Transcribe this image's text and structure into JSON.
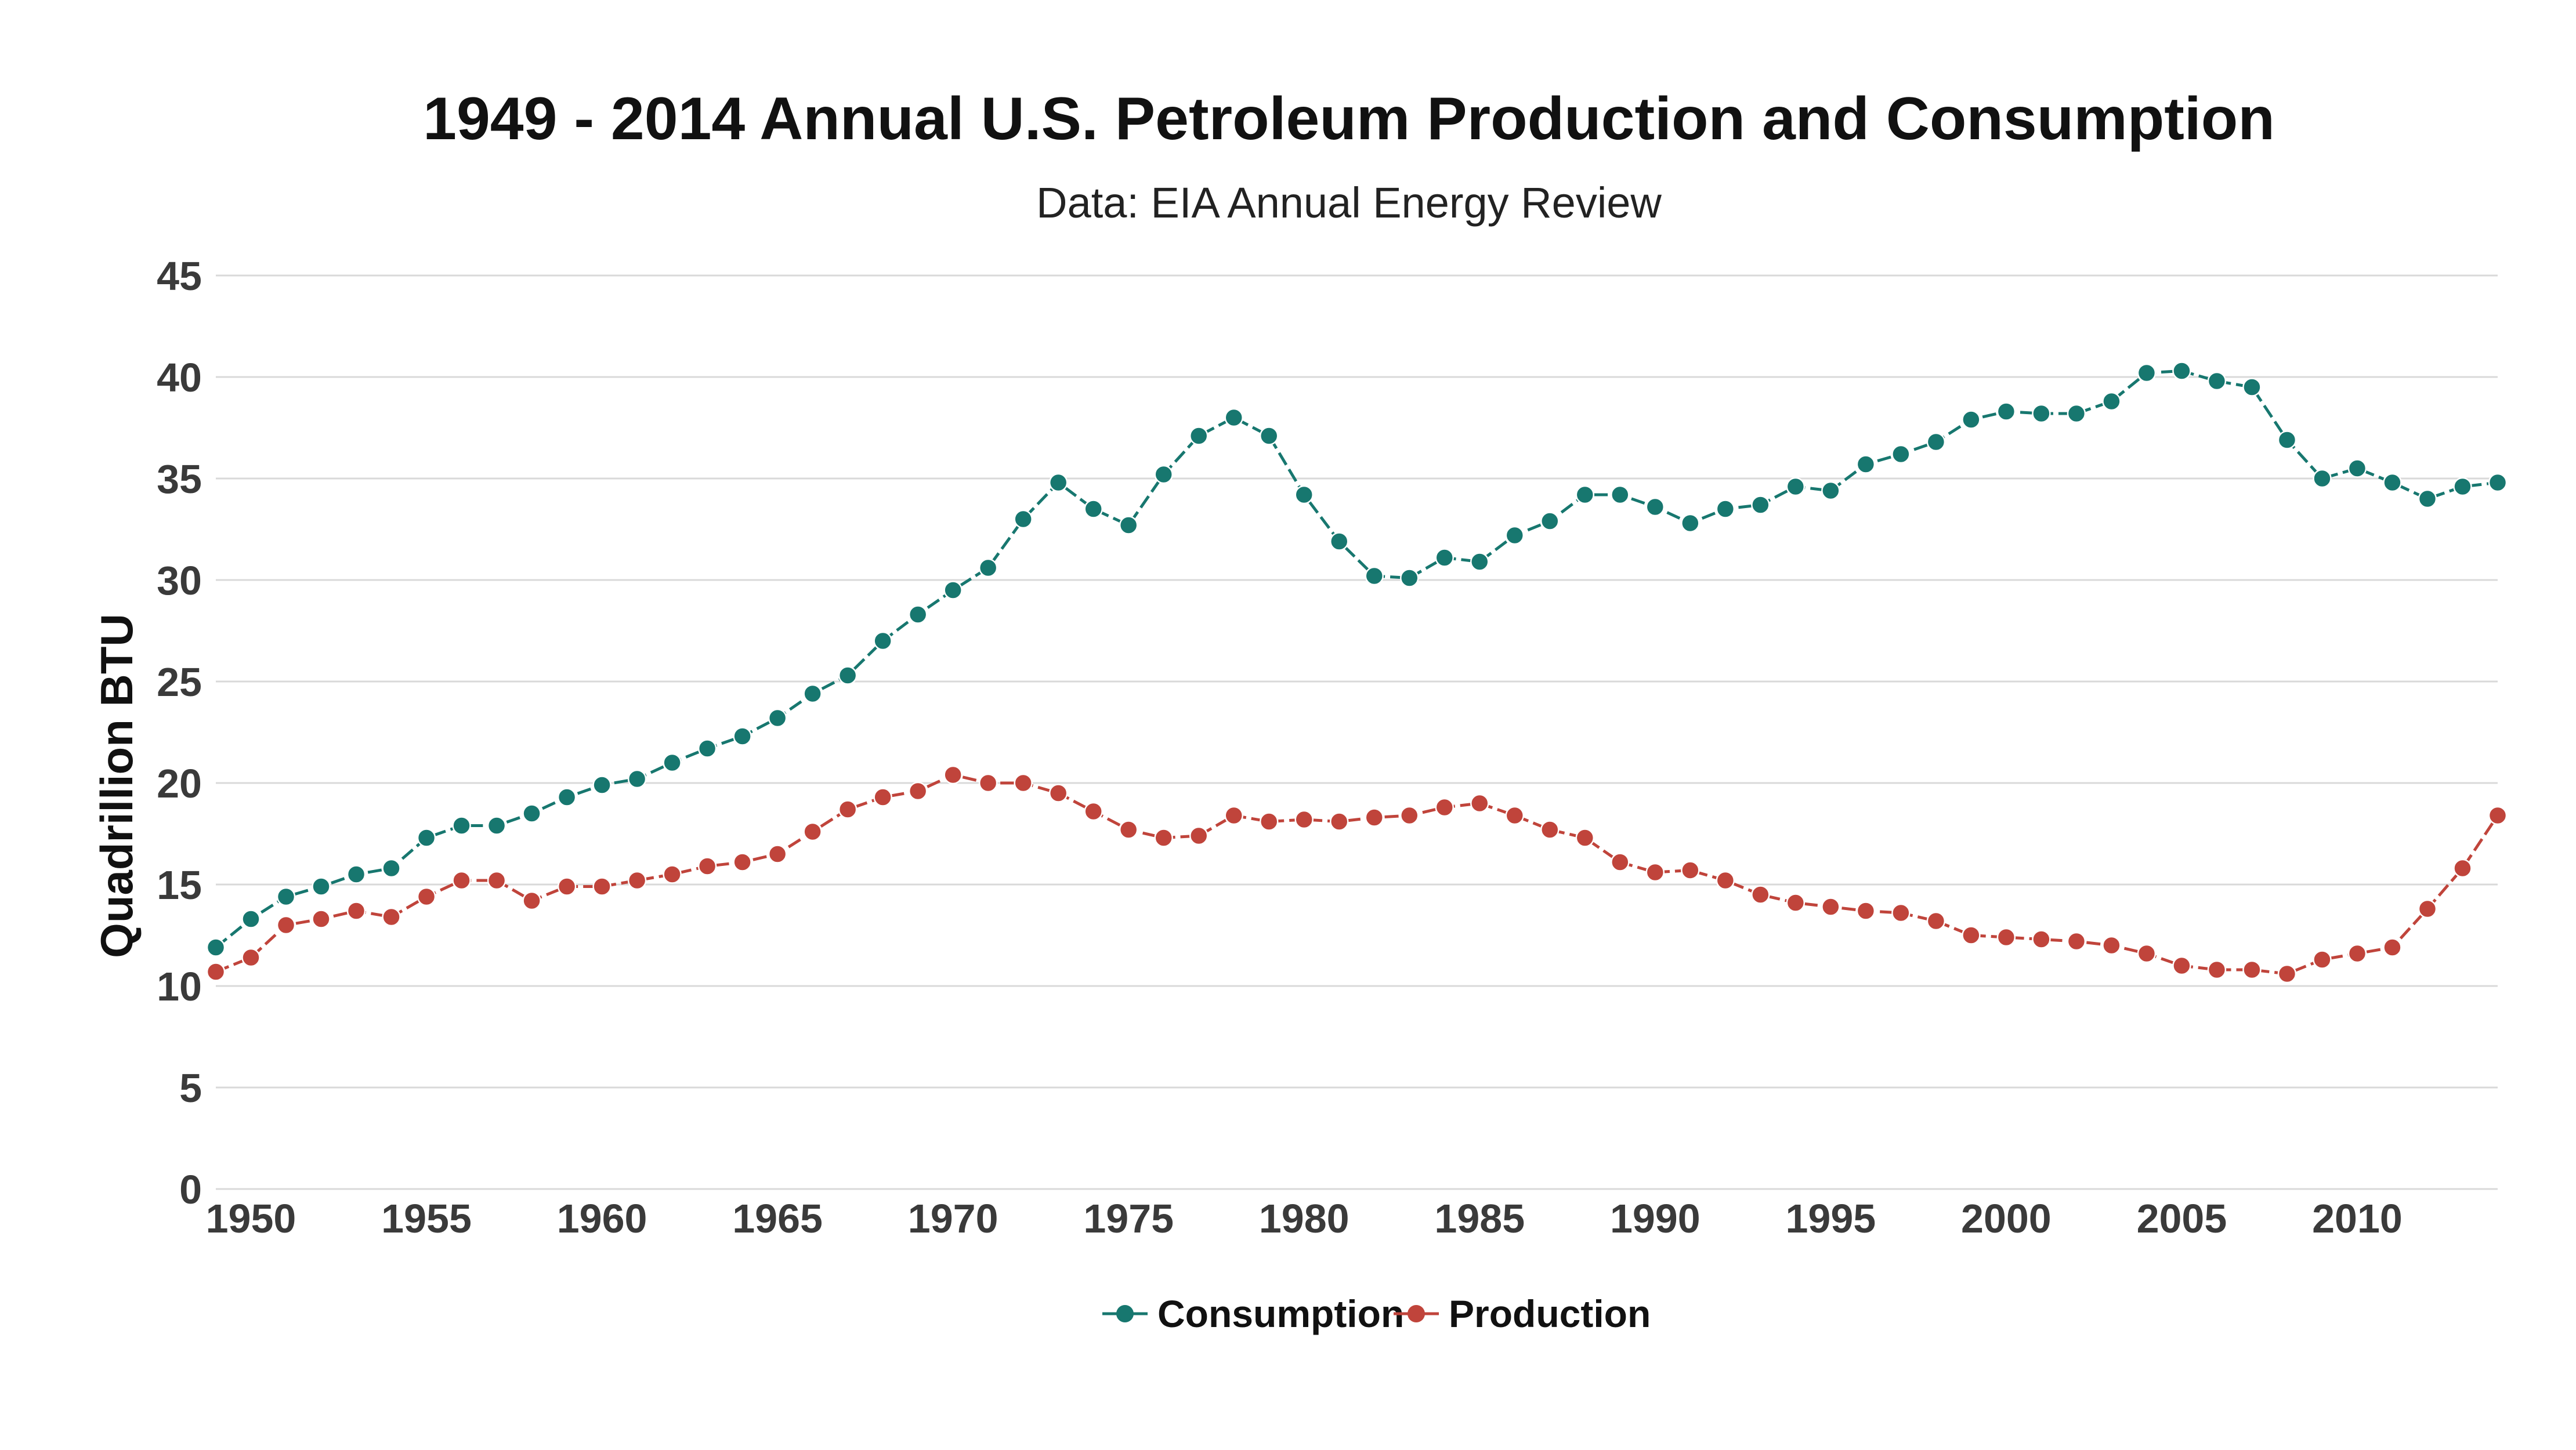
{
  "chart_data": {
    "type": "line",
    "title": "1949 - 2014 Annual U.S. Petroleum Production and Consumption",
    "subtitle": "Data: EIA Annual Energy Review",
    "xlabel": "",
    "ylabel": "Quadrillion BTU",
    "xlim": [
      1949,
      2014
    ],
    "ylim": [
      0,
      45
    ],
    "x_ticks": [
      1950,
      1955,
      1960,
      1965,
      1970,
      1975,
      1980,
      1985,
      1990,
      1995,
      2000,
      2005,
      2010
    ],
    "y_ticks": [
      0,
      5,
      10,
      15,
      20,
      25,
      30,
      35,
      40,
      45
    ],
    "grid": true,
    "legend_position": "bottom-center",
    "x": [
      1949,
      1950,
      1951,
      1952,
      1953,
      1954,
      1955,
      1956,
      1957,
      1958,
      1959,
      1960,
      1961,
      1962,
      1963,
      1964,
      1965,
      1966,
      1967,
      1968,
      1969,
      1970,
      1971,
      1972,
      1973,
      1974,
      1975,
      1976,
      1977,
      1978,
      1979,
      1980,
      1981,
      1982,
      1983,
      1984,
      1985,
      1986,
      1987,
      1988,
      1989,
      1990,
      1991,
      1992,
      1993,
      1994,
      1995,
      1996,
      1997,
      1998,
      1999,
      2000,
      2001,
      2002,
      2003,
      2004,
      2005,
      2006,
      2007,
      2008,
      2009,
      2010,
      2011,
      2012,
      2013,
      2014
    ],
    "series": [
      {
        "name": "Consumption",
        "color": "#17776f",
        "values": [
          11.9,
          13.3,
          14.4,
          14.9,
          15.5,
          15.8,
          17.3,
          17.9,
          17.9,
          18.5,
          19.3,
          19.9,
          20.2,
          21.0,
          21.7,
          22.3,
          23.2,
          24.4,
          25.3,
          27.0,
          28.3,
          29.5,
          30.6,
          33.0,
          34.8,
          33.5,
          32.7,
          35.2,
          37.1,
          38.0,
          37.1,
          34.2,
          31.9,
          30.2,
          30.1,
          31.1,
          30.9,
          32.2,
          32.9,
          34.2,
          34.2,
          33.6,
          32.8,
          33.5,
          33.7,
          34.6,
          34.4,
          35.7,
          36.2,
          36.8,
          37.9,
          38.3,
          38.2,
          38.2,
          38.8,
          40.2,
          40.3,
          39.8,
          39.5,
          36.9,
          35.0,
          35.5,
          34.8,
          34.0,
          34.6,
          34.8
        ]
      },
      {
        "name": "Production",
        "color": "#c0443b",
        "values": [
          10.7,
          11.4,
          13.0,
          13.3,
          13.7,
          13.4,
          14.4,
          15.2,
          15.2,
          14.2,
          14.9,
          14.9,
          15.2,
          15.5,
          15.9,
          16.1,
          16.5,
          17.6,
          18.7,
          19.3,
          19.6,
          20.4,
          20.0,
          20.0,
          19.5,
          18.6,
          17.7,
          17.3,
          17.4,
          18.4,
          18.1,
          18.2,
          18.1,
          18.3,
          18.4,
          18.8,
          19.0,
          18.4,
          17.7,
          17.3,
          16.1,
          15.6,
          15.7,
          15.2,
          14.5,
          14.1,
          13.9,
          13.7,
          13.6,
          13.2,
          12.5,
          12.4,
          12.3,
          12.2,
          12.0,
          11.6,
          11.0,
          10.8,
          10.8,
          10.6,
          11.3,
          11.6,
          11.9,
          13.8,
          15.8,
          18.4
        ]
      }
    ]
  }
}
